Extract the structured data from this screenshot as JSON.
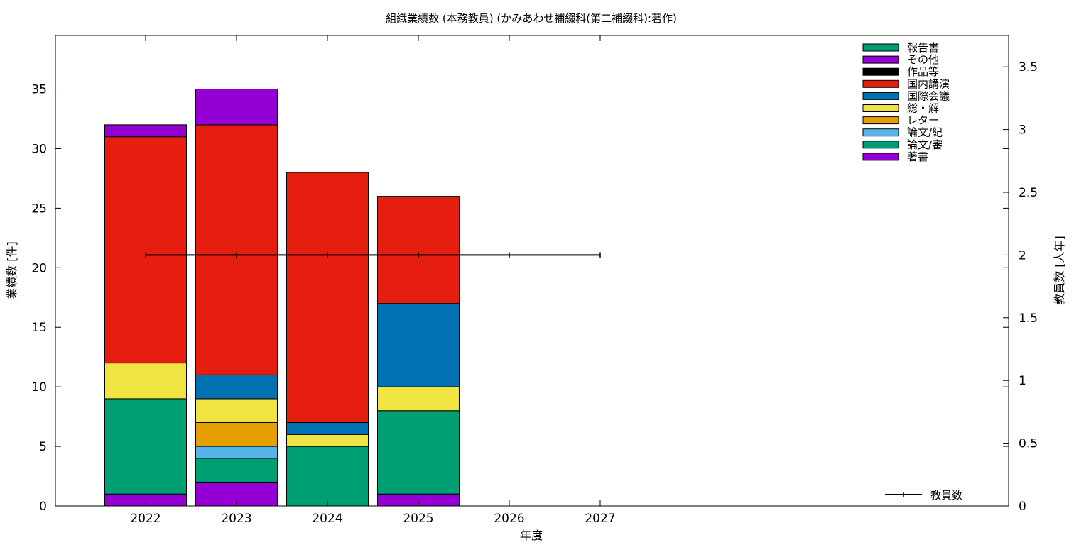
{
  "chart_data": {
    "type": "bar",
    "title": "組織業績数 (本務教員) (かみあわせ補綴科(第二補綴科):著作)",
    "xlabel": "年度",
    "ylabel": "業績数 [件]",
    "y2label": "教員数 [人年]",
    "categories": [
      "2022",
      "2023",
      "2024",
      "2025",
      "2026",
      "2027"
    ],
    "ylim": [
      0,
      39.5
    ],
    "y2lim": [
      0,
      3.75
    ],
    "yticks": [
      "0",
      "5",
      "10",
      "15",
      "20",
      "25",
      "30",
      "35"
    ],
    "y2ticks": [
      "0",
      "0.5",
      "1",
      "1.5",
      "2",
      "2.5",
      "3",
      "3.5"
    ],
    "grid": false,
    "legend_position": "top-right",
    "series": [
      {
        "name": "著書",
        "color": "#9400d3",
        "values": [
          1,
          2,
          0,
          1,
          0,
          0
        ]
      },
      {
        "name": "論文/審",
        "color": "#009e73",
        "values": [
          8,
          2,
          5,
          7,
          0,
          0
        ]
      },
      {
        "name": "論文/紀",
        "color": "#56b4e9",
        "values": [
          0,
          1,
          0,
          0,
          0,
          0
        ]
      },
      {
        "name": "レター",
        "color": "#e69f00",
        "values": [
          0,
          2,
          0,
          0,
          0,
          0
        ]
      },
      {
        "name": "総・解",
        "color": "#f0e442",
        "values": [
          3,
          2,
          1,
          2,
          0,
          0
        ]
      },
      {
        "name": "国際会議",
        "color": "#0072b2",
        "values": [
          0,
          2,
          1,
          7,
          0,
          0
        ]
      },
      {
        "name": "国内講演",
        "color": "#e51e10",
        "values": [
          19,
          21,
          21,
          9,
          0,
          0
        ]
      },
      {
        "name": "作品等",
        "color": "#000000",
        "values": [
          0,
          0,
          0,
          0,
          0,
          0
        ]
      },
      {
        "name": "その他",
        "color": "#9400d3",
        "values": [
          1,
          3,
          0,
          0,
          0,
          0
        ]
      },
      {
        "name": "報告書",
        "color": "#009e73",
        "values": [
          0,
          0,
          0,
          0,
          0,
          0
        ]
      }
    ],
    "line_series": {
      "name": "教員数",
      "color": "#000000",
      "axis": "y2",
      "values": [
        2,
        2,
        2,
        2,
        2,
        2
      ]
    }
  }
}
